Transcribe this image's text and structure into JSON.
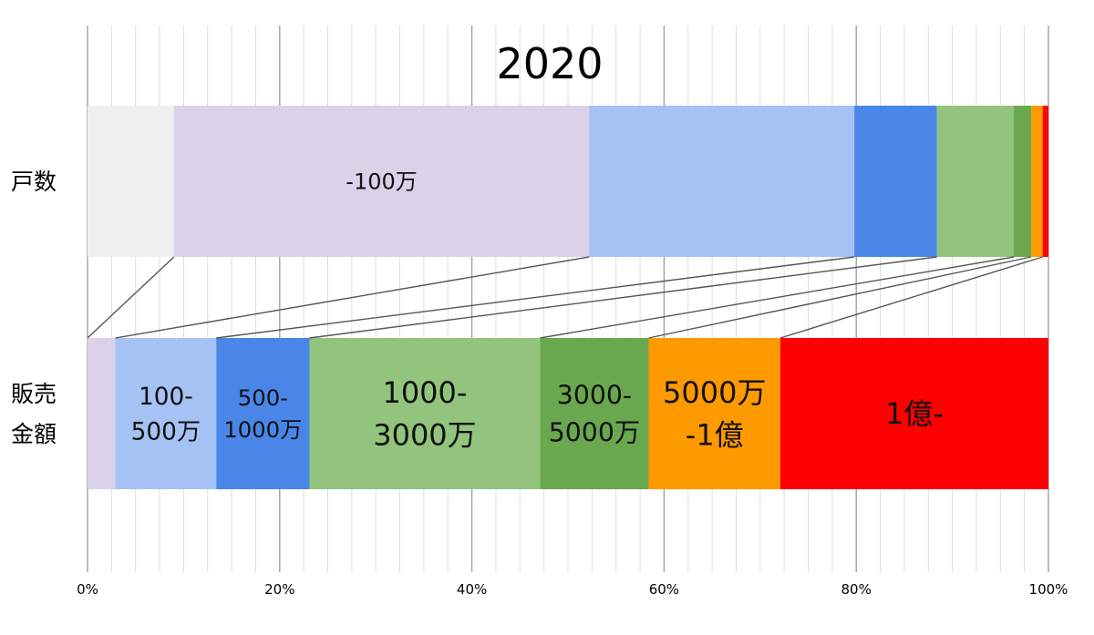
{
  "chart_data": {
    "type": "bar",
    "stacked": true,
    "percent_stacked": true,
    "orientation": "horizontal",
    "title": "2020",
    "categories": [
      "戸数",
      "販売金額"
    ],
    "category_label_lines": [
      [
        "戸数"
      ],
      [
        "販売",
        "金額"
      ]
    ],
    "xlim": [
      0,
      100
    ],
    "x_ticks": [
      0,
      20,
      40,
      60,
      80,
      100
    ],
    "x_tick_labels": [
      "0%",
      "20%",
      "40%",
      "60%",
      "80%",
      "100%"
    ],
    "grid": "vertical",
    "connector_lines": true,
    "series": [
      {
        "color": "#efefef",
        "values": [
          9.0,
          0.0
        ]
      },
      {
        "color": "#d9d2e9",
        "values": [
          43.2,
          2.9
        ],
        "labels": [
          [
            "-100万"
          ],
          []
        ]
      },
      {
        "color": "#a4c2f4",
        "values": [
          27.6,
          10.5
        ],
        "labels": [
          [],
          [
            "100-",
            "500万"
          ]
        ]
      },
      {
        "color": "#4a86e8",
        "values": [
          8.6,
          9.7
        ],
        "labels": [
          [],
          [
            "500-",
            "1000万"
          ]
        ]
      },
      {
        "color": "#93c47d",
        "values": [
          8.0,
          24.0
        ],
        "labels": [
          [],
          [
            "1000-",
            "3000万"
          ]
        ]
      },
      {
        "color": "#6aa84f",
        "values": [
          1.8,
          11.3
        ],
        "labels": [
          [],
          [
            "3000-",
            "5000万"
          ]
        ]
      },
      {
        "color": "#ff9900",
        "values": [
          1.2,
          13.7
        ],
        "labels": [
          [],
          [
            "5000万",
            "-1億"
          ]
        ]
      },
      {
        "color": "#ff0000",
        "values": [
          0.6,
          27.9
        ],
        "labels": [
          [],
          [
            "1億-"
          ]
        ]
      }
    ]
  }
}
